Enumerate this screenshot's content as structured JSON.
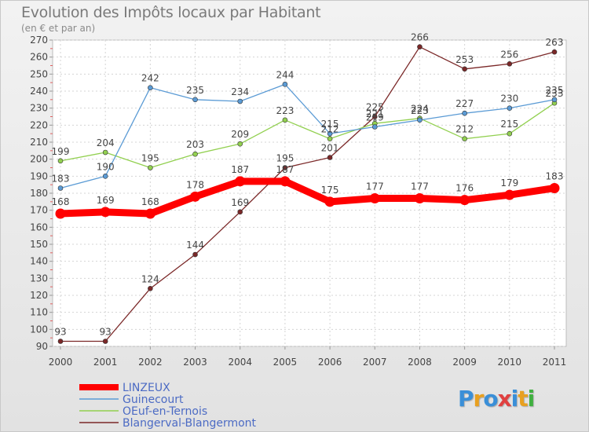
{
  "header": {
    "title": "Evolution des Impôts locaux par Habitant",
    "subtitle": "(en € et par an)"
  },
  "logo": {
    "letters": [
      "P",
      "r",
      "o",
      "x",
      "i",
      "t",
      "i"
    ],
    "colors": [
      "#3a8fd8",
      "#e8a020",
      "#3a8fd8",
      "#e04040",
      "#3a8fd8",
      "#e8a020",
      "#40b040"
    ]
  },
  "chart_data": {
    "type": "line",
    "title": "Evolution des Impôts locaux par Habitant",
    "subtitle": "(en € et par an)",
    "xlabel": "",
    "ylabel": "",
    "x": [
      "2000",
      "2001",
      "2002",
      "2003",
      "2004",
      "2005",
      "2006",
      "2007",
      "2008",
      "2009",
      "2010",
      "2011"
    ],
    "ylim": [
      90,
      270
    ],
    "yticks": [
      90,
      100,
      110,
      120,
      130,
      140,
      150,
      160,
      170,
      180,
      190,
      200,
      210,
      220,
      230,
      240,
      250,
      260,
      270
    ],
    "grid": true,
    "legend_position": "bottom-left",
    "series": [
      {
        "name": "LINZEUX",
        "color": "#ff0000",
        "values": [
          168,
          169,
          168,
          178,
          187,
          187,
          175,
          177,
          177,
          176,
          179,
          183
        ],
        "labels": [
          "168",
          "169",
          "168",
          "178",
          "187",
          "187",
          "175",
          "177",
          "177",
          "176",
          "179",
          "183"
        ]
      },
      {
        "name": "Guinecourt",
        "color": "#5b9bd5",
        "values": [
          183,
          190,
          242,
          235,
          234,
          244,
          215,
          219,
          223,
          227,
          230,
          235
        ],
        "labels": [
          "183",
          "190",
          "242",
          "235",
          "234",
          "244",
          "215",
          "219",
          "223",
          "227",
          "230",
          "235"
        ]
      },
      {
        "name": "OEuf-en-Ternois",
        "color": "#92d050",
        "values": [
          199,
          204,
          195,
          203,
          209,
          223,
          212,
          221,
          224,
          212,
          215,
          233
        ],
        "labels": [
          "199",
          "204",
          "195",
          "203",
          "209",
          "223",
          "212",
          "221",
          "224",
          "212",
          "215",
          "233"
        ]
      },
      {
        "name": "Blangerval-Blangermont",
        "color": "#7b2828",
        "values": [
          93,
          93,
          124,
          144,
          169,
          195,
          201,
          225,
          266,
          253,
          256,
          263
        ],
        "labels": [
          "93",
          "93",
          "124",
          "144",
          "169",
          "195",
          "201",
          "225",
          "266",
          "253",
          "256",
          "263"
        ]
      }
    ]
  }
}
